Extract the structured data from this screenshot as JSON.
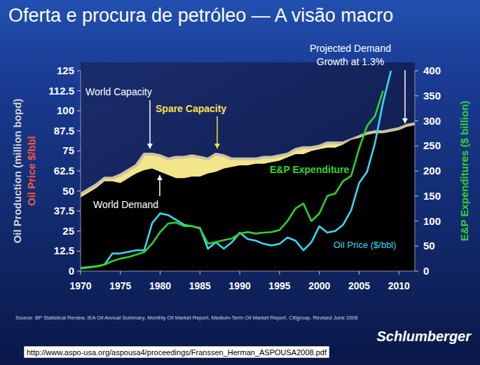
{
  "chart_data": {
    "type": "line",
    "title": "Oferta e procura de petróleo — A visão macro",
    "ylabels": [
      "Oil Production (million bopd)",
      "Oil Price $/bbl"
    ],
    "y2label": "E&P Expenditures ($ billion)",
    "x": [
      1970,
      1971,
      1972,
      1973,
      1974,
      1975,
      1976,
      1977,
      1978,
      1979,
      1980,
      1981,
      1982,
      1983,
      1984,
      1985,
      1986,
      1987,
      1988,
      1989,
      1990,
      1991,
      1992,
      1993,
      1994,
      1995,
      1996,
      1997,
      1998,
      1999,
      2000,
      2001,
      2002,
      2003,
      2004,
      2005,
      2006,
      2007,
      2008,
      2009,
      2010,
      2011,
      2012
    ],
    "xlim": [
      1970,
      2012
    ],
    "xticks": [
      1970,
      1975,
      1980,
      1985,
      1990,
      1995,
      2000,
      2005,
      2010
    ],
    "ylim": [
      0,
      125
    ],
    "yticks": [
      0,
      12.5,
      25,
      37.5,
      50,
      62.5,
      75,
      87.5,
      100,
      112.5,
      125
    ],
    "y2lim": [
      0,
      400
    ],
    "y2ticks": [
      0,
      50,
      100,
      150,
      200,
      250,
      300,
      350,
      400
    ],
    "grid": false,
    "series": [
      {
        "name": "World Capacity",
        "type": "area",
        "color": "#f3e58c",
        "values": [
          48,
          51,
          54,
          58,
          58,
          60,
          63,
          66,
          73,
          73,
          72,
          70,
          71,
          71,
          72,
          71,
          70,
          73,
          72,
          70,
          70,
          70,
          70,
          71,
          71,
          72,
          73,
          76,
          77,
          77,
          78,
          80,
          80,
          80,
          82,
          84,
          86,
          87,
          87,
          88,
          89,
          91,
          92
        ]
      },
      {
        "name": "World Demand",
        "type": "area",
        "color": "#000000",
        "values": [
          46,
          49,
          52,
          56,
          56,
          55,
          58,
          61,
          63,
          64,
          62,
          60,
          58,
          58,
          59,
          59,
          61,
          62,
          64,
          65,
          66,
          66,
          67,
          67,
          68,
          69,
          71,
          73,
          73,
          75,
          76,
          77,
          77,
          79,
          82,
          83,
          85,
          86,
          86,
          87,
          88,
          90,
          91
        ]
      },
      {
        "name": "Oil Price ($/bbl)",
        "type": "line",
        "color": "#38d8f2",
        "values": [
          2,
          2.5,
          3,
          4,
          11,
          11,
          12,
          13,
          13,
          30,
          36,
          35,
          32,
          29,
          28,
          27,
          14,
          18,
          14,
          18,
          24,
          20,
          19,
          17,
          16,
          17,
          21,
          19,
          13,
          18,
          28,
          24,
          25,
          29,
          38,
          55,
          62,
          80,
          105,
          125,
          null,
          null,
          null
        ]
      },
      {
        "name": "E&P Expenditure",
        "type": "line",
        "color": "#2fd12f",
        "axis": "y2",
        "values": [
          5,
          7,
          9,
          13,
          20,
          25,
          28,
          33,
          38,
          55,
          78,
          95,
          97,
          90,
          90,
          85,
          55,
          58,
          62,
          65,
          75,
          78,
          75,
          77,
          78,
          82,
          100,
          125,
          135,
          100,
          115,
          150,
          155,
          180,
          190,
          245,
          290,
          310,
          360,
          null,
          null,
          null,
          null
        ]
      }
    ],
    "annotations": [
      "Spare Capacity",
      "Projected Demand Growth at 1.3%"
    ]
  },
  "footer": {
    "source": "Source: BP Statistical Review, IEA Oil Annual Summary, Monthly Oil Market Report, Medium-Term Oil Market Report, Citigroup. Revised June 2008",
    "logo": "Schlumberger",
    "url": "http://www.aspo-usa.org/aspousa4/proceedings/Franssen_Herman_ASPOUSA2008.pdf"
  }
}
